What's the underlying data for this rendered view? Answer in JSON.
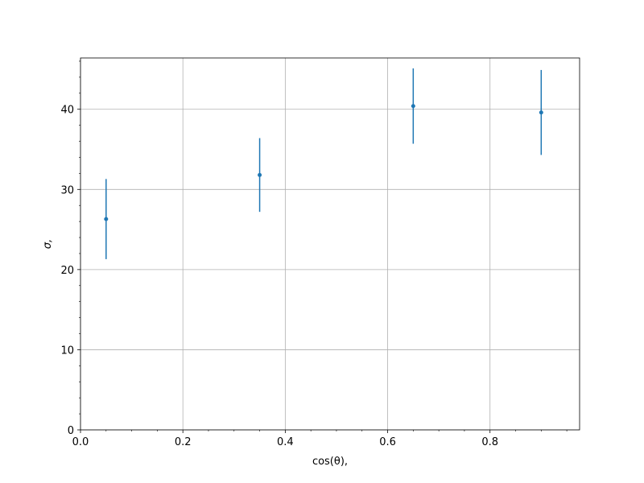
{
  "chart_data": {
    "type": "errorbar",
    "x_label": "cos(θ),",
    "y_label": "σ,",
    "x": [
      0.05,
      0.35,
      0.65,
      0.9
    ],
    "values": [
      26.3,
      31.8,
      40.4,
      39.6
    ],
    "errors": [
      5.0,
      4.6,
      4.7,
      5.3
    ],
    "color": "#1f77b4",
    "xlim": [
      0,
      0.975
    ],
    "ylim": [
      0,
      46.4
    ],
    "xticks": [
      {
        "value": 0,
        "label": "0.0"
      },
      {
        "value": 0.2,
        "label": "0.2"
      },
      {
        "value": 0.4,
        "label": "0.4"
      },
      {
        "value": 0.6,
        "label": "0.6"
      },
      {
        "value": 0.8,
        "label": "0.8"
      }
    ],
    "yticks": [
      0,
      10,
      20,
      30,
      40
    ],
    "xminorticks": [
      0.05,
      0.1,
      0.15,
      0.25,
      0.3,
      0.35,
      0.45,
      0.5,
      0.55,
      0.65,
      0.7,
      0.75,
      0.85,
      0.9,
      0.95
    ],
    "yminorticks": [
      2,
      4,
      6,
      8,
      12,
      14,
      16,
      18,
      22,
      24,
      26,
      28,
      32,
      34,
      36,
      38,
      42,
      44,
      46
    ],
    "grid": true
  }
}
